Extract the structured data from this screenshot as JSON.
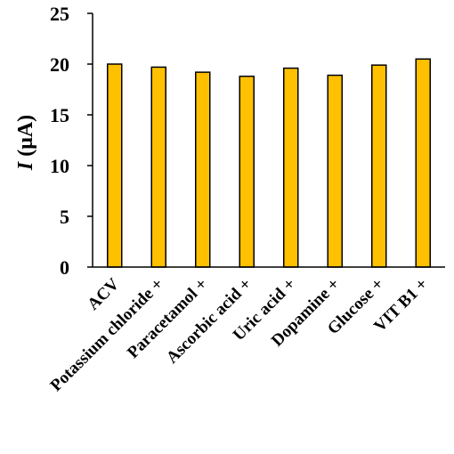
{
  "chart_data": {
    "type": "bar",
    "categories": [
      "ACV",
      "Potassium chloride +",
      "Paracetamol +",
      "Ascorbic acid +",
      "Uric acid +",
      "Dopamine +",
      "Glucose +",
      "VIT B1 +"
    ],
    "values": [
      20.0,
      19.7,
      19.2,
      18.8,
      19.6,
      18.9,
      19.9,
      20.5
    ],
    "title": "",
    "xlabel": "",
    "ylabel_italic": "I",
    "ylabel_rest": " (μA)",
    "ylim": [
      0,
      25
    ],
    "yticks": [
      0,
      5,
      10,
      15,
      20,
      25
    ],
    "grid": false,
    "legend": "none",
    "bar_color": "#FFC000",
    "bar_edge_color": "#000000"
  }
}
